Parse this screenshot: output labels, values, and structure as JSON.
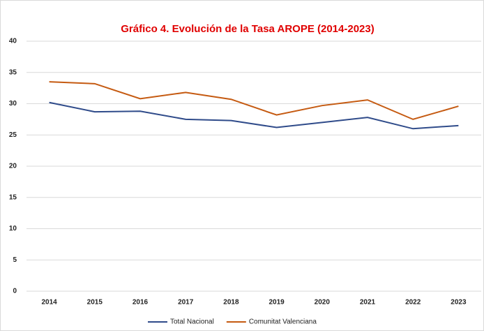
{
  "chart_data": {
    "type": "line",
    "title": "Gráfico 4. Evolución de la Tasa AROPE (2014-2023)",
    "categories": [
      "2014",
      "2015",
      "2016",
      "2017",
      "2018",
      "2019",
      "2020",
      "2021",
      "2022",
      "2023"
    ],
    "series": [
      {
        "name": "Total Nacional",
        "color": "#2f4b8a",
        "values": [
          30.2,
          28.7,
          28.8,
          27.5,
          27.3,
          26.2,
          27.0,
          27.8,
          26.0,
          26.5
        ]
      },
      {
        "name": "Comunitat Valenciana",
        "color": "#c55a11",
        "values": [
          33.5,
          33.2,
          30.8,
          31.8,
          30.7,
          28.2,
          29.7,
          30.6,
          27.5,
          29.6
        ]
      }
    ],
    "ylim": [
      0,
      40
    ],
    "yticks": [
      0,
      5,
      10,
      15,
      20,
      25,
      30,
      35,
      40
    ],
    "grid": true,
    "legend": "bottom"
  }
}
